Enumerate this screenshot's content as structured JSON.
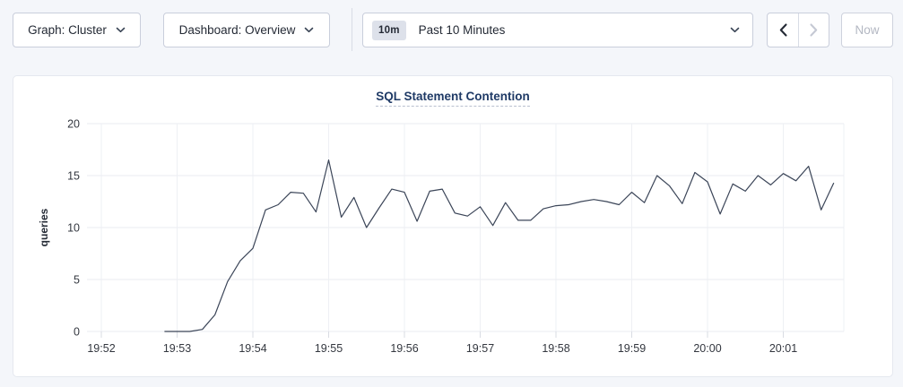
{
  "toolbar": {
    "graph_dropdown": {
      "label": "Graph: Cluster"
    },
    "dashboard_dropdown": {
      "label": "Dashboard: Overview"
    },
    "time_selector": {
      "badge": "10m",
      "label": "Past 10 Minutes"
    },
    "prev_button": {
      "icon": "chevron-left",
      "disabled": false
    },
    "next_button": {
      "icon": "chevron-right",
      "disabled": true
    },
    "now_button": {
      "label": "Now",
      "disabled": true
    }
  },
  "chart_data": {
    "type": "line",
    "title": "SQL Statement Contention",
    "xlabel": "",
    "ylabel": "queries",
    "ylim": [
      0,
      20
    ],
    "yticks": [
      0,
      5,
      10,
      15,
      20
    ],
    "xticks": [
      "19:52",
      "19:53",
      "19:54",
      "19:55",
      "19:56",
      "19:57",
      "19:58",
      "19:59",
      "20:00",
      "20:01"
    ],
    "x_axis_start": "19:52",
    "x_minutes_per_tick": 1,
    "grid": true,
    "legend_position": "none",
    "series": [
      {
        "name": "SQL Statement Contention",
        "color": "#3b4558",
        "start_time": "19:52:50",
        "interval_seconds": 10,
        "values": [
          0,
          0,
          0,
          0.2,
          1.6,
          4.8,
          6.8,
          8,
          11.7,
          12.2,
          13.4,
          13.3,
          11.5,
          16.5,
          11,
          12.9,
          10,
          11.9,
          13.7,
          13.4,
          10.6,
          13.5,
          13.7,
          11.4,
          11.1,
          12,
          10.2,
          12.4,
          10.7,
          10.7,
          11.8,
          12.1,
          12.2,
          12.5,
          12.7,
          12.5,
          12.2,
          13.4,
          12.4,
          15,
          14,
          12.3,
          15.3,
          14.4,
          11.3,
          14.2,
          13.5,
          15,
          14.1,
          15.2,
          14.5,
          15.9,
          11.7,
          14.3
        ]
      }
    ]
  },
  "colors": {
    "page_background": "#f4f6fa",
    "card_background": "#ffffff",
    "card_border": "#e5e8ef",
    "control_border": "#c9cedb",
    "control_text": "#242a35",
    "disabled_text": "#b3b7c2",
    "badge_background": "#dde1ea",
    "title_text": "#1f3a66",
    "grid_line": "#e9ebf0",
    "axis_text": "#33373f",
    "series_line": "#3b4558"
  }
}
